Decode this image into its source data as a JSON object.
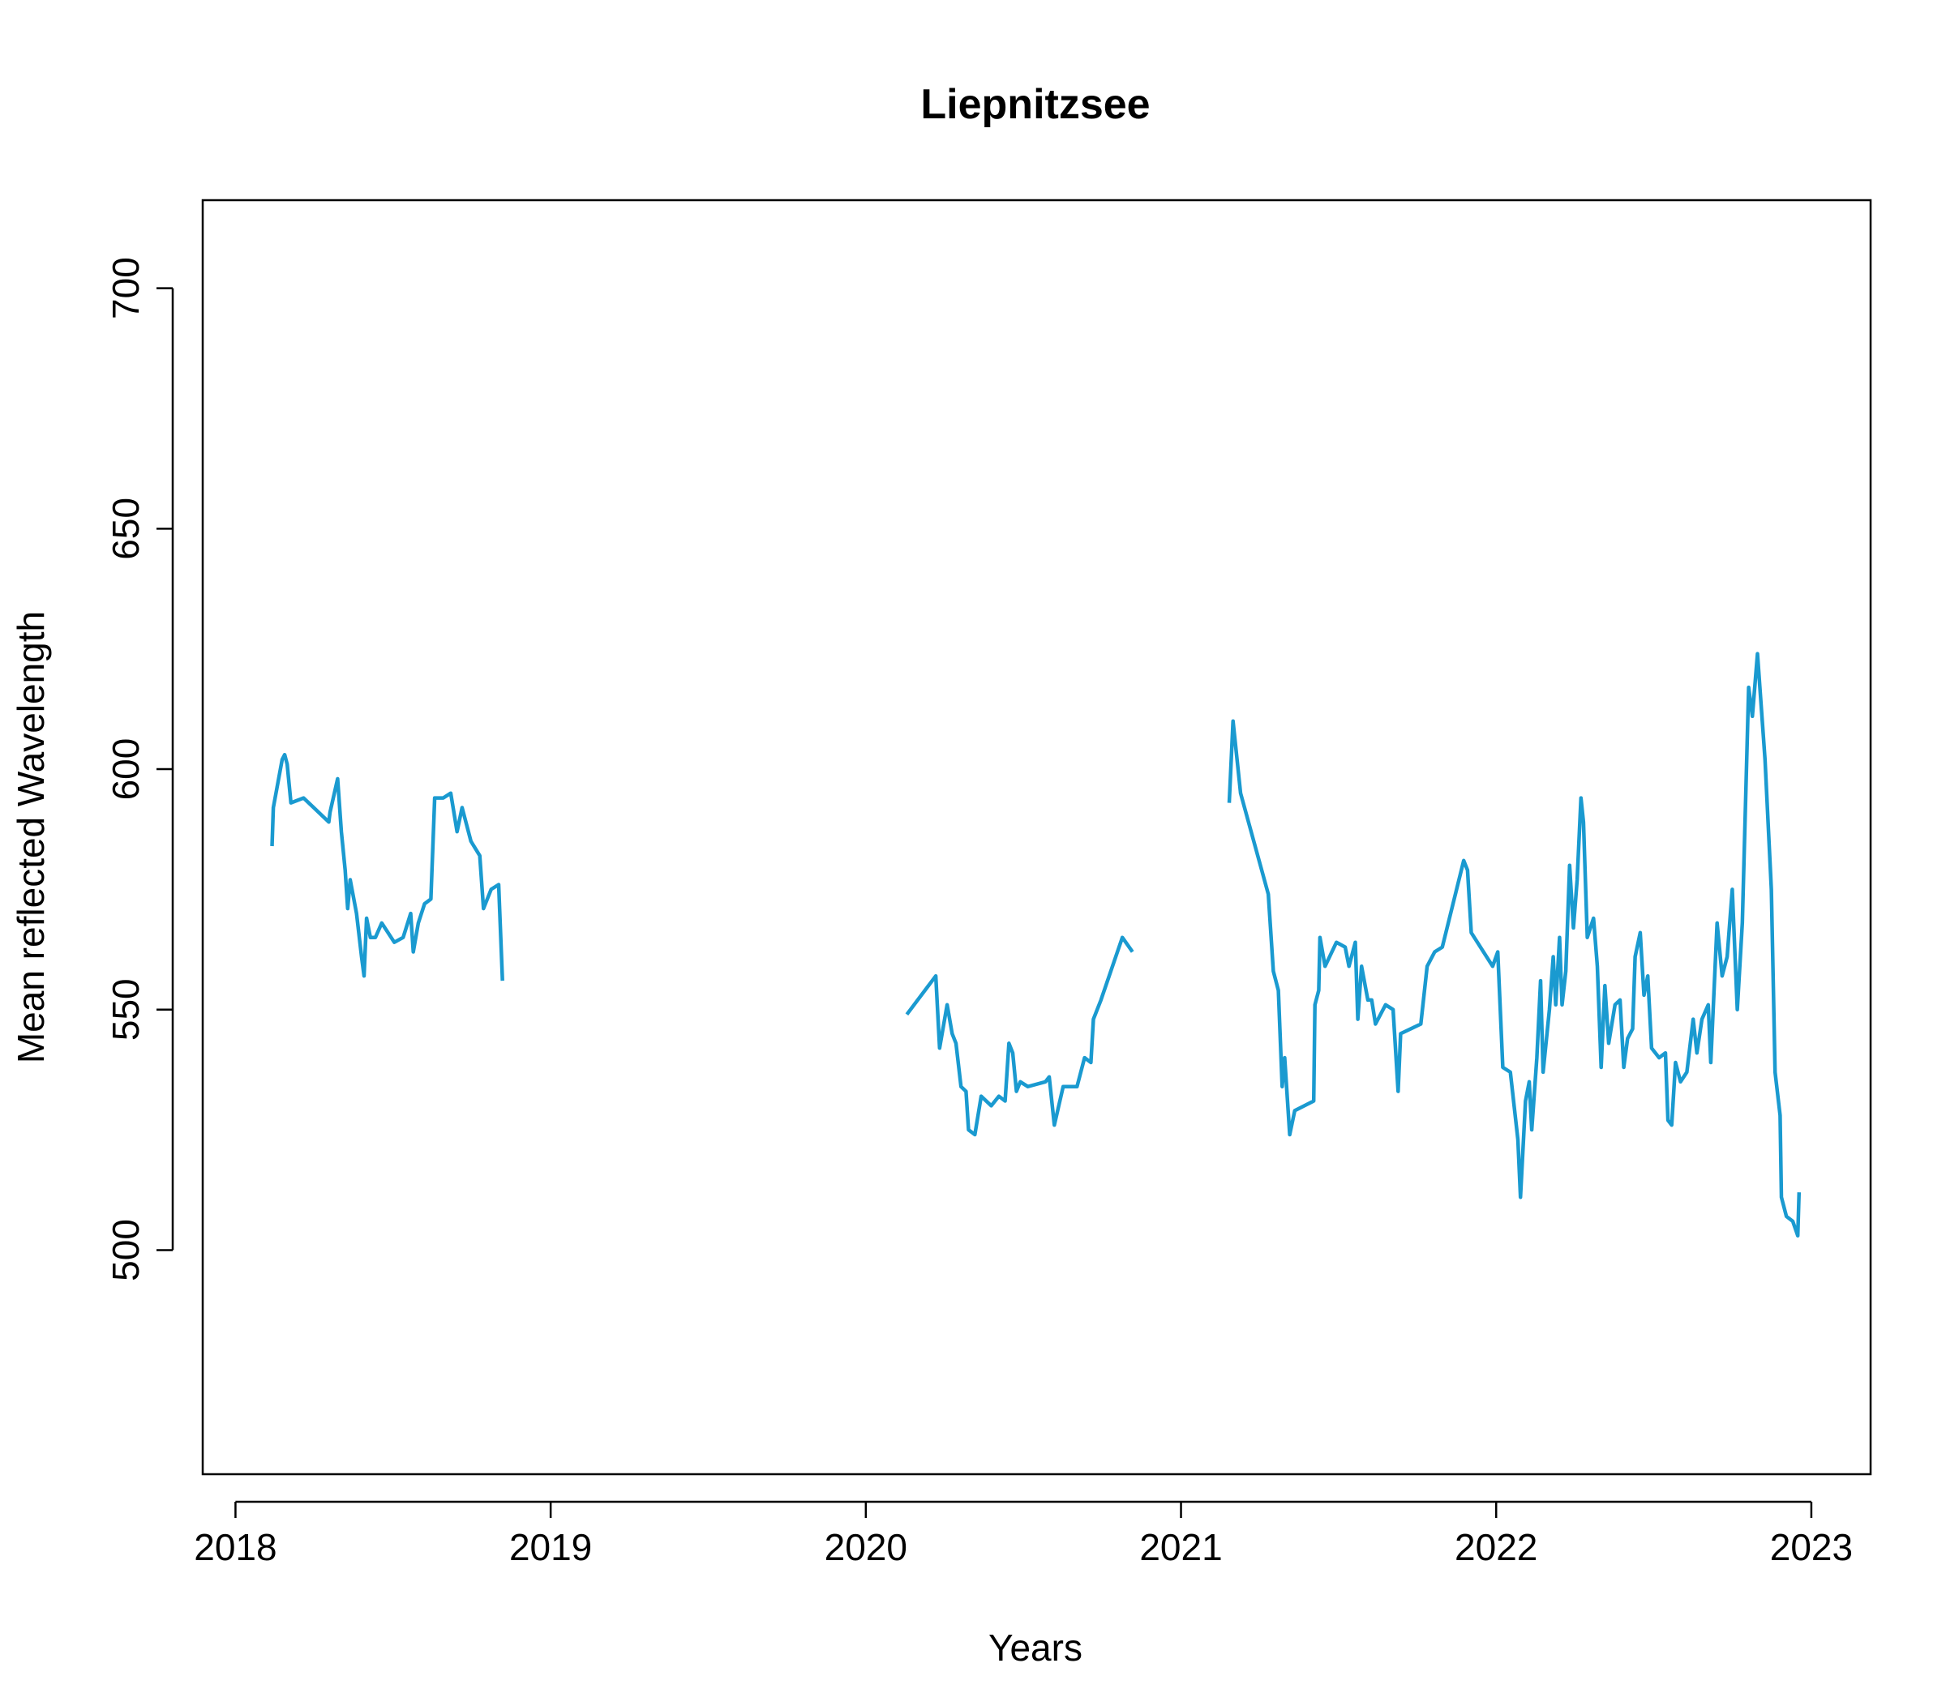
{
  "chart_data": {
    "type": "line",
    "title": "Liepnitzsee",
    "x_label": "Years",
    "y_label": "Mean reflected Wavelength",
    "xlim": [
      2017.896,
      2023.188
    ],
    "ylim": [
      453.4,
      718.3
    ],
    "xticks": [
      2018,
      2019,
      2020,
      2021,
      2022,
      2023
    ],
    "yticks": [
      500,
      550,
      600,
      650,
      700
    ],
    "grid": false,
    "series": [
      {
        "name": "Liepnitzsee",
        "color": "#1a9ad0",
        "x": [
          2018.116,
          2018.12,
          2018.148,
          2018.156,
          2018.164,
          2018.176,
          2018.216,
          2018.296,
          2018.3,
          2018.324,
          2018.336,
          2018.348,
          2018.356,
          2018.364,
          2018.384,
          2018.4,
          2018.408,
          2018.416,
          2018.428,
          2018.444,
          2018.464,
          2018.504,
          2018.532,
          2018.556,
          2018.564,
          2018.58,
          2018.6,
          2018.62,
          2018.632,
          2018.659,
          2018.683,
          2018.703,
          2018.719,
          2018.747,
          2018.775,
          2018.787,
          2018.811,
          2018.835,
          2018.847,
          null,
          2020.13,
          2020.222,
          2020.234,
          2020.258,
          2020.274,
          2020.286,
          2020.302,
          2020.318,
          2020.326,
          2020.346,
          2020.366,
          2020.398,
          2020.422,
          2020.442,
          2020.454,
          2020.466,
          2020.478,
          2020.49,
          2020.514,
          2020.57,
          2020.582,
          2020.598,
          2020.626,
          2020.67,
          2020.694,
          2020.714,
          2020.722,
          2020.746,
          2020.814,
          2020.846,
          null,
          2021.153,
          2021.165,
          2021.189,
          2021.277,
          2021.293,
          2021.309,
          2021.321,
          2021.329,
          2021.345,
          2021.361,
          2021.421,
          2021.425,
          2021.437,
          2021.441,
          2021.457,
          2021.493,
          2021.521,
          2021.533,
          2021.553,
          2021.561,
          2021.573,
          2021.593,
          2021.605,
          2021.617,
          2021.649,
          2021.673,
          2021.689,
          2021.697,
          2021.761,
          2021.781,
          2021.805,
          2021.829,
          2021.897,
          2021.909,
          2021.921,
          2021.989,
          2022.005,
          2022.021,
          2022.045,
          2022.069,
          2022.077,
          2022.093,
          2022.105,
          2022.113,
          2022.129,
          2022.141,
          2022.149,
          2022.169,
          2022.181,
          2022.189,
          2022.201,
          2022.209,
          2022.221,
          2022.233,
          2022.245,
          2022.257,
          2022.269,
          2022.277,
          2022.289,
          2022.309,
          2022.321,
          2022.333,
          2022.345,
          2022.357,
          2022.377,
          2022.393,
          2022.405,
          2022.417,
          2022.433,
          2022.441,
          2022.457,
          2022.469,
          2022.481,
          2022.493,
          2022.517,
          2022.537,
          2022.545,
          2022.557,
          2022.569,
          2022.585,
          2022.605,
          2022.625,
          2022.637,
          2022.653,
          2022.673,
          2022.681,
          2022.701,
          2022.717,
          2022.733,
          2022.749,
          2022.765,
          2022.781,
          2022.801,
          2022.813,
          2022.829,
          2022.853,
          2022.873,
          2022.885,
          2022.901,
          2022.905,
          2022.921,
          2022.941,
          2022.957,
          2022.961
        ],
        "values": [
          584,
          592,
          602,
          603,
          601,
          593,
          594,
          589,
          591,
          598,
          587,
          579,
          571,
          577,
          570,
          561,
          557,
          569,
          565,
          565,
          568,
          564,
          565,
          570,
          562,
          568,
          572,
          573,
          594,
          594,
          595,
          587,
          592,
          585,
          582,
          571,
          575,
          576,
          556,
          null,
          549,
          557,
          542,
          551,
          545,
          543,
          534,
          533,
          525,
          524,
          532,
          530,
          532,
          531,
          543,
          541,
          533,
          535,
          534,
          535,
          536,
          526,
          534,
          534,
          540,
          539,
          548,
          552,
          565,
          562,
          null,
          593,
          610,
          595,
          574,
          558,
          554,
          534,
          540,
          524,
          529,
          531,
          551,
          554,
          565,
          559,
          564,
          563,
          559,
          564,
          548,
          559,
          552,
          552,
          547,
          551,
          550,
          533,
          545,
          547,
          559,
          562,
          563,
          581,
          579,
          566,
          559,
          562,
          538,
          537,
          523,
          511,
          531,
          535,
          525,
          540,
          556,
          537,
          550,
          561,
          551,
          565,
          551,
          558,
          580,
          567,
          577,
          594,
          589,
          565,
          569,
          559,
          538,
          555,
          543,
          551,
          552,
          538,
          544,
          546,
          561,
          566,
          553,
          557,
          542,
          540,
          541,
          527,
          526,
          539,
          535,
          537,
          548,
          541,
          548,
          551,
          539,
          568,
          557,
          561,
          575,
          550,
          568,
          617,
          611,
          624,
          602,
          575,
          537,
          528,
          511,
          507,
          506,
          503,
          512
        ]
      }
    ]
  }
}
